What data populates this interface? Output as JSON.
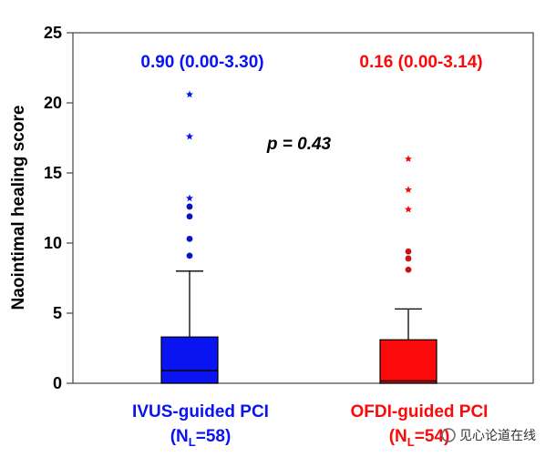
{
  "chart_data": {
    "type": "box",
    "ylabel": "Naointimal healing score",
    "ylim": [
      0,
      25
    ],
    "yticks": [
      0,
      5,
      10,
      15,
      20,
      25
    ],
    "annotation": "p = 0.43",
    "groups": [
      {
        "name_line1": "IVUS-guided PCI",
        "n_prefix": "(N",
        "n_sub": "L",
        "n_suffix": "=58)",
        "color": "#0a14f0",
        "summary": "0.90 (0.00-3.30)",
        "q1": 0.0,
        "median": 0.9,
        "q3": 3.3,
        "whisker_low": 0.0,
        "whisker_high": 8.0,
        "outliers_dots": [
          9.1,
          10.3,
          11.9,
          12.6
        ],
        "outliers_stars": [
          13.2,
          17.6,
          20.6
        ]
      },
      {
        "name_line1": "OFDI-guided PCI",
        "n_prefix": "(N",
        "n_sub": "L",
        "n_suffix": "=54)",
        "color": "#fa0a0a",
        "summary": "0.16 (0.00-3.14)",
        "q1": 0.0,
        "median": 0.16,
        "q3": 3.1,
        "whisker_low": 0.0,
        "whisker_high": 5.3,
        "outliers_dots": [
          8.1,
          8.9,
          9.4
        ],
        "outliers_stars": [
          12.4,
          13.8,
          16.0
        ]
      }
    ]
  },
  "watermark": "见心论道在线"
}
